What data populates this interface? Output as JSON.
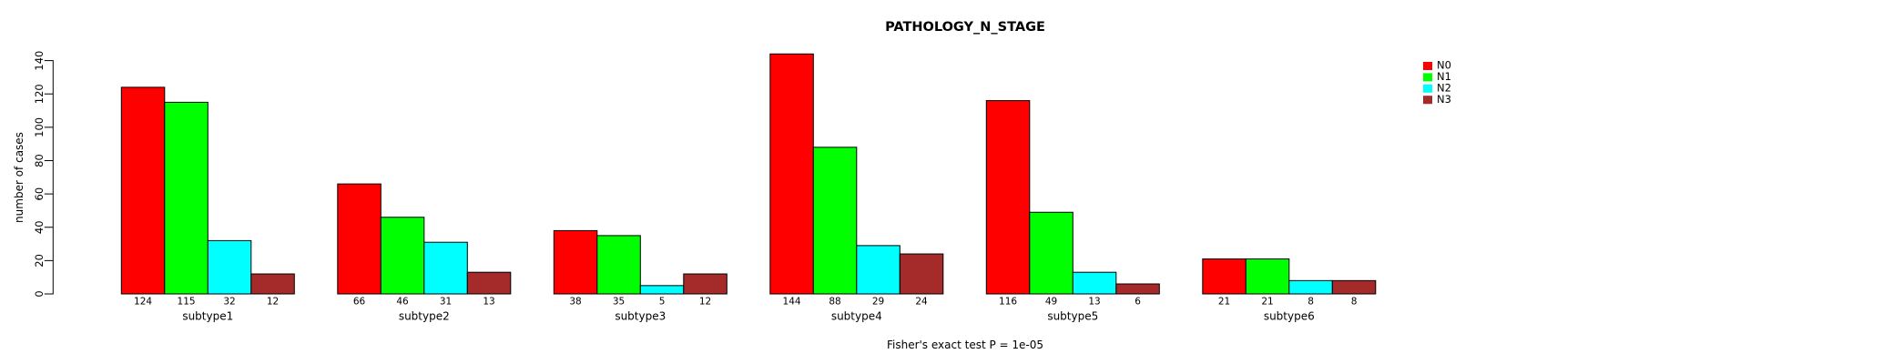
{
  "chart_data": {
    "type": "bar",
    "grouped": true,
    "title": "PATHOLOGY_N_STAGE",
    "annotation": "Fisher's exact test P = 1e-05",
    "xlabel": "",
    "ylabel": "number of cases",
    "ylim": [
      0,
      140
    ],
    "yticks": [
      0,
      20,
      40,
      60,
      80,
      100,
      120,
      140
    ],
    "grid": false,
    "legend_position": "top-right",
    "value_labels_shown": true,
    "bar_border_color": "#000000",
    "background_color": "#ffffff",
    "categories": [
      "subtype1",
      "subtype2",
      "subtype3",
      "subtype4",
      "subtype5",
      "subtype6"
    ],
    "series": [
      {
        "name": "N0",
        "color": "#ff0000",
        "values": [
          124,
          66,
          38,
          144,
          116,
          21
        ]
      },
      {
        "name": "N1",
        "color": "#00ff00",
        "values": [
          115,
          46,
          35,
          88,
          49,
          21
        ]
      },
      {
        "name": "N2",
        "color": "#00ffff",
        "values": [
          32,
          31,
          5,
          29,
          13,
          8
        ]
      },
      {
        "name": "N3",
        "color": "#a52a2a",
        "values": [
          12,
          13,
          12,
          24,
          6,
          8
        ]
      }
    ]
  }
}
